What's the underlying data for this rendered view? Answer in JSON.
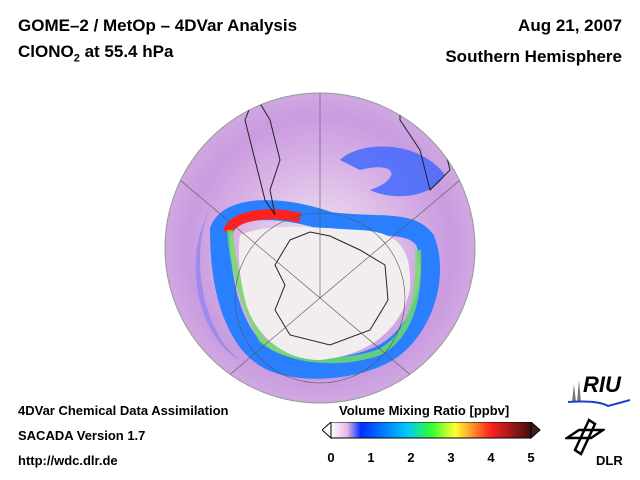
{
  "header": {
    "title_line1": "GOME–2 / MetOp – 4DVar Analysis",
    "title_species": "ClONO",
    "title_subscript": "2",
    "title_level": " at 55.4 hPa",
    "date": "Aug 21, 2007",
    "hemisphere": "Southern Hemisphere"
  },
  "footer": {
    "line1": "4DVar Chemical Data Assimilation",
    "line2": "SACADA Version 1.7",
    "line3": "http://wdc.dlr.de"
  },
  "colorbar": {
    "title": "Volume Mixing Ratio [ppbv]",
    "ticks": [
      "0",
      "1",
      "2",
      "3",
      "4",
      "5"
    ],
    "range": [
      0,
      5
    ],
    "colors": [
      "#ffffff",
      "#e6b8e6",
      "#0030ff",
      "#00c8ff",
      "#30ff30",
      "#ffff30",
      "#ff2020",
      "#401010"
    ]
  },
  "logos": {
    "riu": "RIU",
    "dlr": "DLR"
  }
}
